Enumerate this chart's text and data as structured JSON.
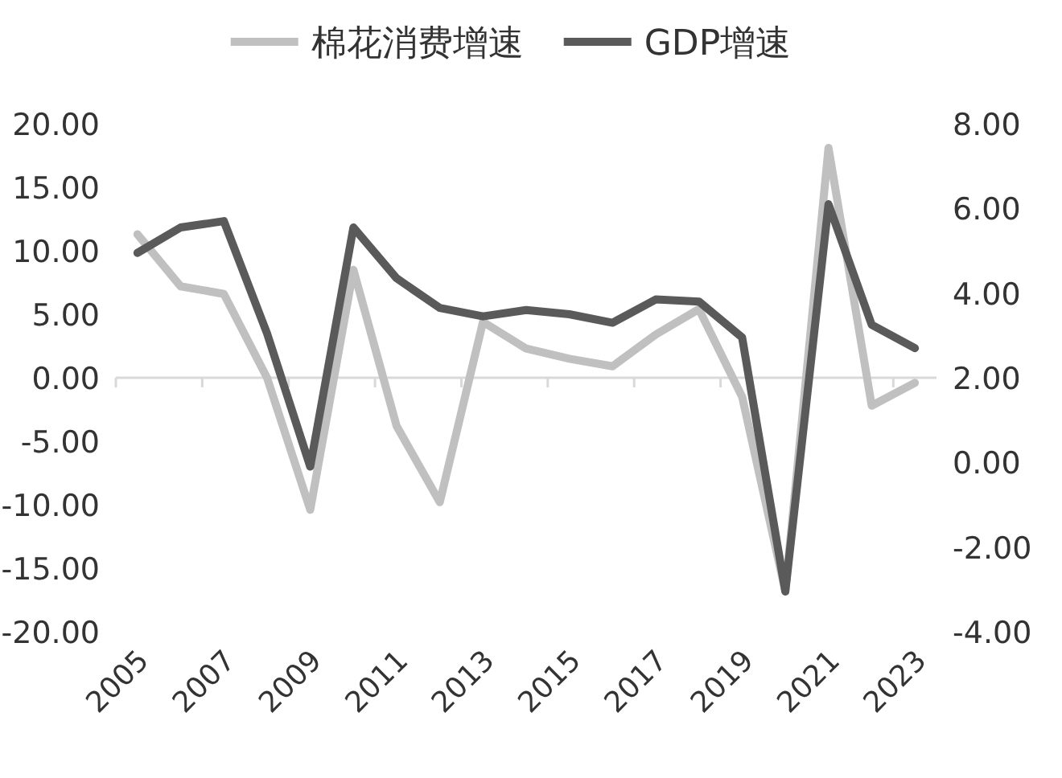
{
  "chart_data": {
    "type": "line",
    "legend": "top",
    "categories": [
      "2005",
      null,
      "2007",
      null,
      "2009",
      null,
      "2011",
      null,
      "2013",
      null,
      "2015",
      null,
      "2017",
      null,
      "2019",
      null,
      "2021",
      null,
      "2023"
    ],
    "ylim": [
      -20,
      20
    ],
    "yticks": [
      {
        "value": -20,
        "label": "-20.00"
      },
      {
        "value": -15,
        "label": "-15.00"
      },
      {
        "value": -10,
        "label": "-10.00"
      },
      {
        "value": -5,
        "label": "-5.00"
      },
      {
        "value": 0,
        "label": "0.00"
      },
      {
        "value": 5,
        "label": "5.00"
      },
      {
        "value": 10,
        "label": "10.00"
      },
      {
        "value": 15,
        "label": "15.00"
      },
      {
        "value": 20,
        "label": "20.00"
      }
    ],
    "y2lim": [
      -4,
      8
    ],
    "y2ticks": [
      {
        "value": -4,
        "label": "-4.00"
      },
      {
        "value": -2,
        "label": "-2.00"
      },
      {
        "value": 0,
        "label": "0.00"
      },
      {
        "value": 2,
        "label": "2.00"
      },
      {
        "value": 4,
        "label": "4.00"
      },
      {
        "value": 6,
        "label": "6.00"
      },
      {
        "value": 8,
        "label": "8.00"
      }
    ],
    "series": [
      {
        "name": "棉花消费增速",
        "color": "#c0c0c0",
        "values": [
          11.3,
          7.2,
          6.6,
          0.0,
          -10.4,
          8.5,
          -3.8,
          -9.8,
          4.4,
          2.3,
          1.5,
          0.9,
          3.4,
          5.4,
          -1.5,
          -16.8,
          18.1,
          -2.2,
          -0.4
        ]
      },
      {
        "name": "GDP增速",
        "color": "#5a5a5a",
        "axis": "y2",
        "values": [
          4.95,
          5.55,
          5.7,
          3.05,
          -0.1,
          5.55,
          4.35,
          3.65,
          3.45,
          3.6,
          3.5,
          3.3,
          3.85,
          3.8,
          2.95,
          -3.05,
          6.1,
          3.25,
          2.7
        ]
      }
    ]
  }
}
